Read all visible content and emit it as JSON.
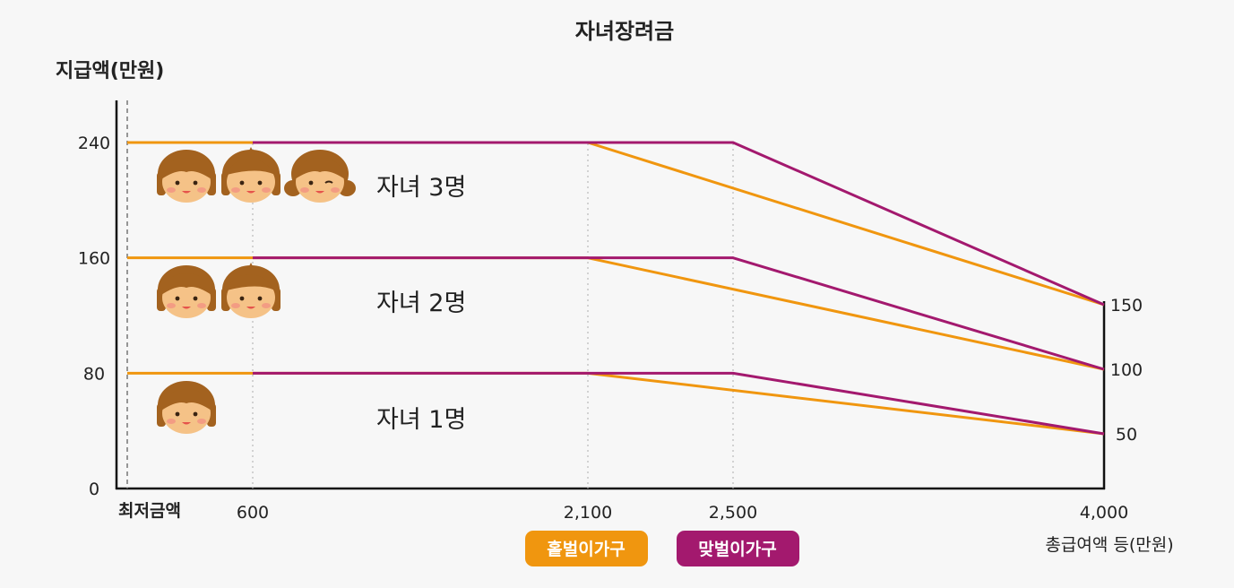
{
  "chart_data": {
    "type": "line",
    "title": "자녀장려금",
    "ylabel": "지급액(만원)",
    "xlabel": "총급여액 등(만원)",
    "x_min_label": "최저금액",
    "x_ticks": [
      {
        "value": 600,
        "label": "600"
      },
      {
        "value": 2100,
        "label": "2,100"
      },
      {
        "value": 2500,
        "label": "2,500"
      },
      {
        "value": 4000,
        "label": "4,000"
      }
    ],
    "y_ticks_left": [
      0,
      80,
      160,
      240
    ],
    "y_ticks_right": [
      50,
      100,
      150
    ],
    "xlim": [
      0,
      4000
    ],
    "ylim": [
      0,
      240
    ],
    "legend": [
      {
        "name": "홑벌이가구",
        "color": "#f0960f"
      },
      {
        "name": "맞벌이가구",
        "color": "#a3196e"
      }
    ],
    "groups": [
      {
        "label": "자녀 3명",
        "faces": 3,
        "series": [
          {
            "name": "홑벌이가구",
            "points": [
              [
                0,
                240
              ],
              [
                2100,
                240
              ],
              [
                4000,
                150
              ]
            ]
          },
          {
            "name": "맞벌이가구",
            "points": [
              [
                600,
                240
              ],
              [
                2500,
                240
              ],
              [
                4000,
                150
              ]
            ]
          }
        ]
      },
      {
        "label": "자녀 2명",
        "faces": 2,
        "series": [
          {
            "name": "홑벌이가구",
            "points": [
              [
                0,
                160
              ],
              [
                2100,
                160
              ],
              [
                4000,
                100
              ]
            ]
          },
          {
            "name": "맞벌이가구",
            "points": [
              [
                600,
                160
              ],
              [
                2500,
                160
              ],
              [
                4000,
                100
              ]
            ]
          }
        ]
      },
      {
        "label": "자녀 1명",
        "faces": 1,
        "series": [
          {
            "name": "홑벌이가구",
            "points": [
              [
                0,
                80
              ],
              [
                2100,
                80
              ],
              [
                4000,
                50
              ]
            ]
          },
          {
            "name": "맞벌이가구",
            "points": [
              [
                600,
                80
              ],
              [
                2500,
                80
              ],
              [
                4000,
                50
              ]
            ]
          }
        ]
      }
    ]
  },
  "colors": {
    "single_income": "#f0960f",
    "dual_income": "#a3196e",
    "face_skin": "#f5c287",
    "face_hair": "#a3621f",
    "cheek": "#f28b82"
  },
  "icons": [
    "child-face-icon"
  ]
}
